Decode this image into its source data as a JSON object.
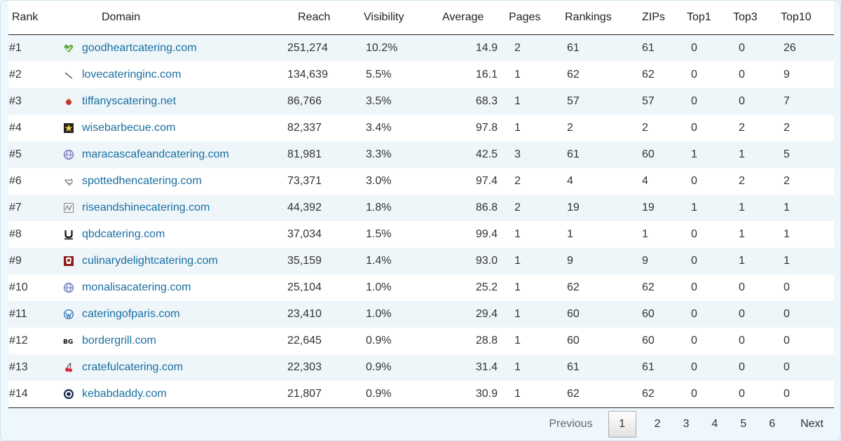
{
  "headers": {
    "rank": "Rank",
    "domain": "Domain",
    "reach": "Reach",
    "visibility": "Visibility",
    "average": "Average",
    "pages": "Pages",
    "rankings": "Rankings",
    "zips": "ZIPs",
    "top1": "Top1",
    "top3": "Top3",
    "top10": "Top10"
  },
  "rows": [
    {
      "rank": "#1",
      "domain": "goodheartcatering.com",
      "icon": "green-heart-icon",
      "reach": "251,274",
      "visibility": "10.2%",
      "average": "14.9",
      "pages": "2",
      "rankings": "61",
      "zips": "61",
      "top1": "0",
      "top3": "0",
      "top10": "26"
    },
    {
      "rank": "#2",
      "domain": "lovecateringinc.com",
      "icon": "whisk-icon",
      "reach": "134,639",
      "visibility": "5.5%",
      "average": "16.1",
      "pages": "1",
      "rankings": "62",
      "zips": "62",
      "top1": "0",
      "top3": "0",
      "top10": "9"
    },
    {
      "rank": "#3",
      "domain": "tiffanyscatering.net",
      "icon": "red-bell-icon",
      "reach": "86,766",
      "visibility": "3.5%",
      "average": "68.3",
      "pages": "1",
      "rankings": "57",
      "zips": "57",
      "top1": "0",
      "top3": "0",
      "top10": "7"
    },
    {
      "rank": "#4",
      "domain": "wisebarbecue.com",
      "icon": "star-badge-icon",
      "reach": "82,337",
      "visibility": "3.4%",
      "average": "97.8",
      "pages": "1",
      "rankings": "2",
      "zips": "2",
      "top1": "0",
      "top3": "2",
      "top10": "2"
    },
    {
      "rank": "#5",
      "domain": "maracascafeandcatering.com",
      "icon": "globe-icon",
      "reach": "81,981",
      "visibility": "3.3%",
      "average": "42.5",
      "pages": "3",
      "rankings": "61",
      "zips": "60",
      "top1": "1",
      "top3": "1",
      "top10": "5"
    },
    {
      "rank": "#6",
      "domain": "spottedhencatering.com",
      "icon": "hen-icon",
      "reach": "73,371",
      "visibility": "3.0%",
      "average": "97.4",
      "pages": "2",
      "rankings": "4",
      "zips": "4",
      "top1": "0",
      "top3": "2",
      "top10": "2"
    },
    {
      "rank": "#7",
      "domain": "riseandshinecatering.com",
      "icon": "sunrise-logo-icon",
      "reach": "44,392",
      "visibility": "1.8%",
      "average": "86.8",
      "pages": "2",
      "rankings": "19",
      "zips": "19",
      "top1": "1",
      "top3": "1",
      "top10": "1"
    },
    {
      "rank": "#8",
      "domain": "qbdcatering.com",
      "icon": "u-letter-icon",
      "reach": "37,034",
      "visibility": "1.5%",
      "average": "99.4",
      "pages": "1",
      "rankings": "1",
      "zips": "1",
      "top1": "0",
      "top3": "1",
      "top10": "1"
    },
    {
      "rank": "#9",
      "domain": "culinarydelightcatering.com",
      "icon": "red-chef-icon",
      "reach": "35,159",
      "visibility": "1.4%",
      "average": "93.0",
      "pages": "1",
      "rankings": "9",
      "zips": "9",
      "top1": "0",
      "top3": "1",
      "top10": "1"
    },
    {
      "rank": "#10",
      "domain": "monalisacatering.com",
      "icon": "globe-icon",
      "reach": "25,104",
      "visibility": "1.0%",
      "average": "25.2",
      "pages": "1",
      "rankings": "62",
      "zips": "62",
      "top1": "0",
      "top3": "0",
      "top10": "0"
    },
    {
      "rank": "#11",
      "domain": "cateringofparis.com",
      "icon": "wordpress-icon",
      "reach": "23,410",
      "visibility": "1.0%",
      "average": "29.4",
      "pages": "1",
      "rankings": "60",
      "zips": "60",
      "top1": "0",
      "top3": "0",
      "top10": "0"
    },
    {
      "rank": "#12",
      "domain": "bordergrill.com",
      "icon": "bg-letters-icon",
      "reach": "22,645",
      "visibility": "0.9%",
      "average": "28.8",
      "pages": "1",
      "rankings": "60",
      "zips": "60",
      "top1": "0",
      "top3": "0",
      "top10": "0"
    },
    {
      "rank": "#13",
      "domain": "cratefulcatering.com",
      "icon": "red-cherry-icon",
      "reach": "22,303",
      "visibility": "0.9%",
      "average": "31.4",
      "pages": "1",
      "rankings": "61",
      "zips": "61",
      "top1": "0",
      "top3": "0",
      "top10": "0"
    },
    {
      "rank": "#14",
      "domain": "kebabdaddy.com",
      "icon": "circle-badge-icon",
      "reach": "21,807",
      "visibility": "0.9%",
      "average": "30.9",
      "pages": "1",
      "rankings": "62",
      "zips": "62",
      "top1": "0",
      "top3": "0",
      "top10": "0"
    }
  ],
  "pagination": {
    "previous": "Previous",
    "pages": [
      "1",
      "2",
      "3",
      "4",
      "5",
      "6"
    ],
    "current": "1",
    "next": "Next"
  },
  "colors": {
    "link": "#1a6fa0",
    "stripe": "#eef6fa",
    "background": "#e9f4fb"
  }
}
